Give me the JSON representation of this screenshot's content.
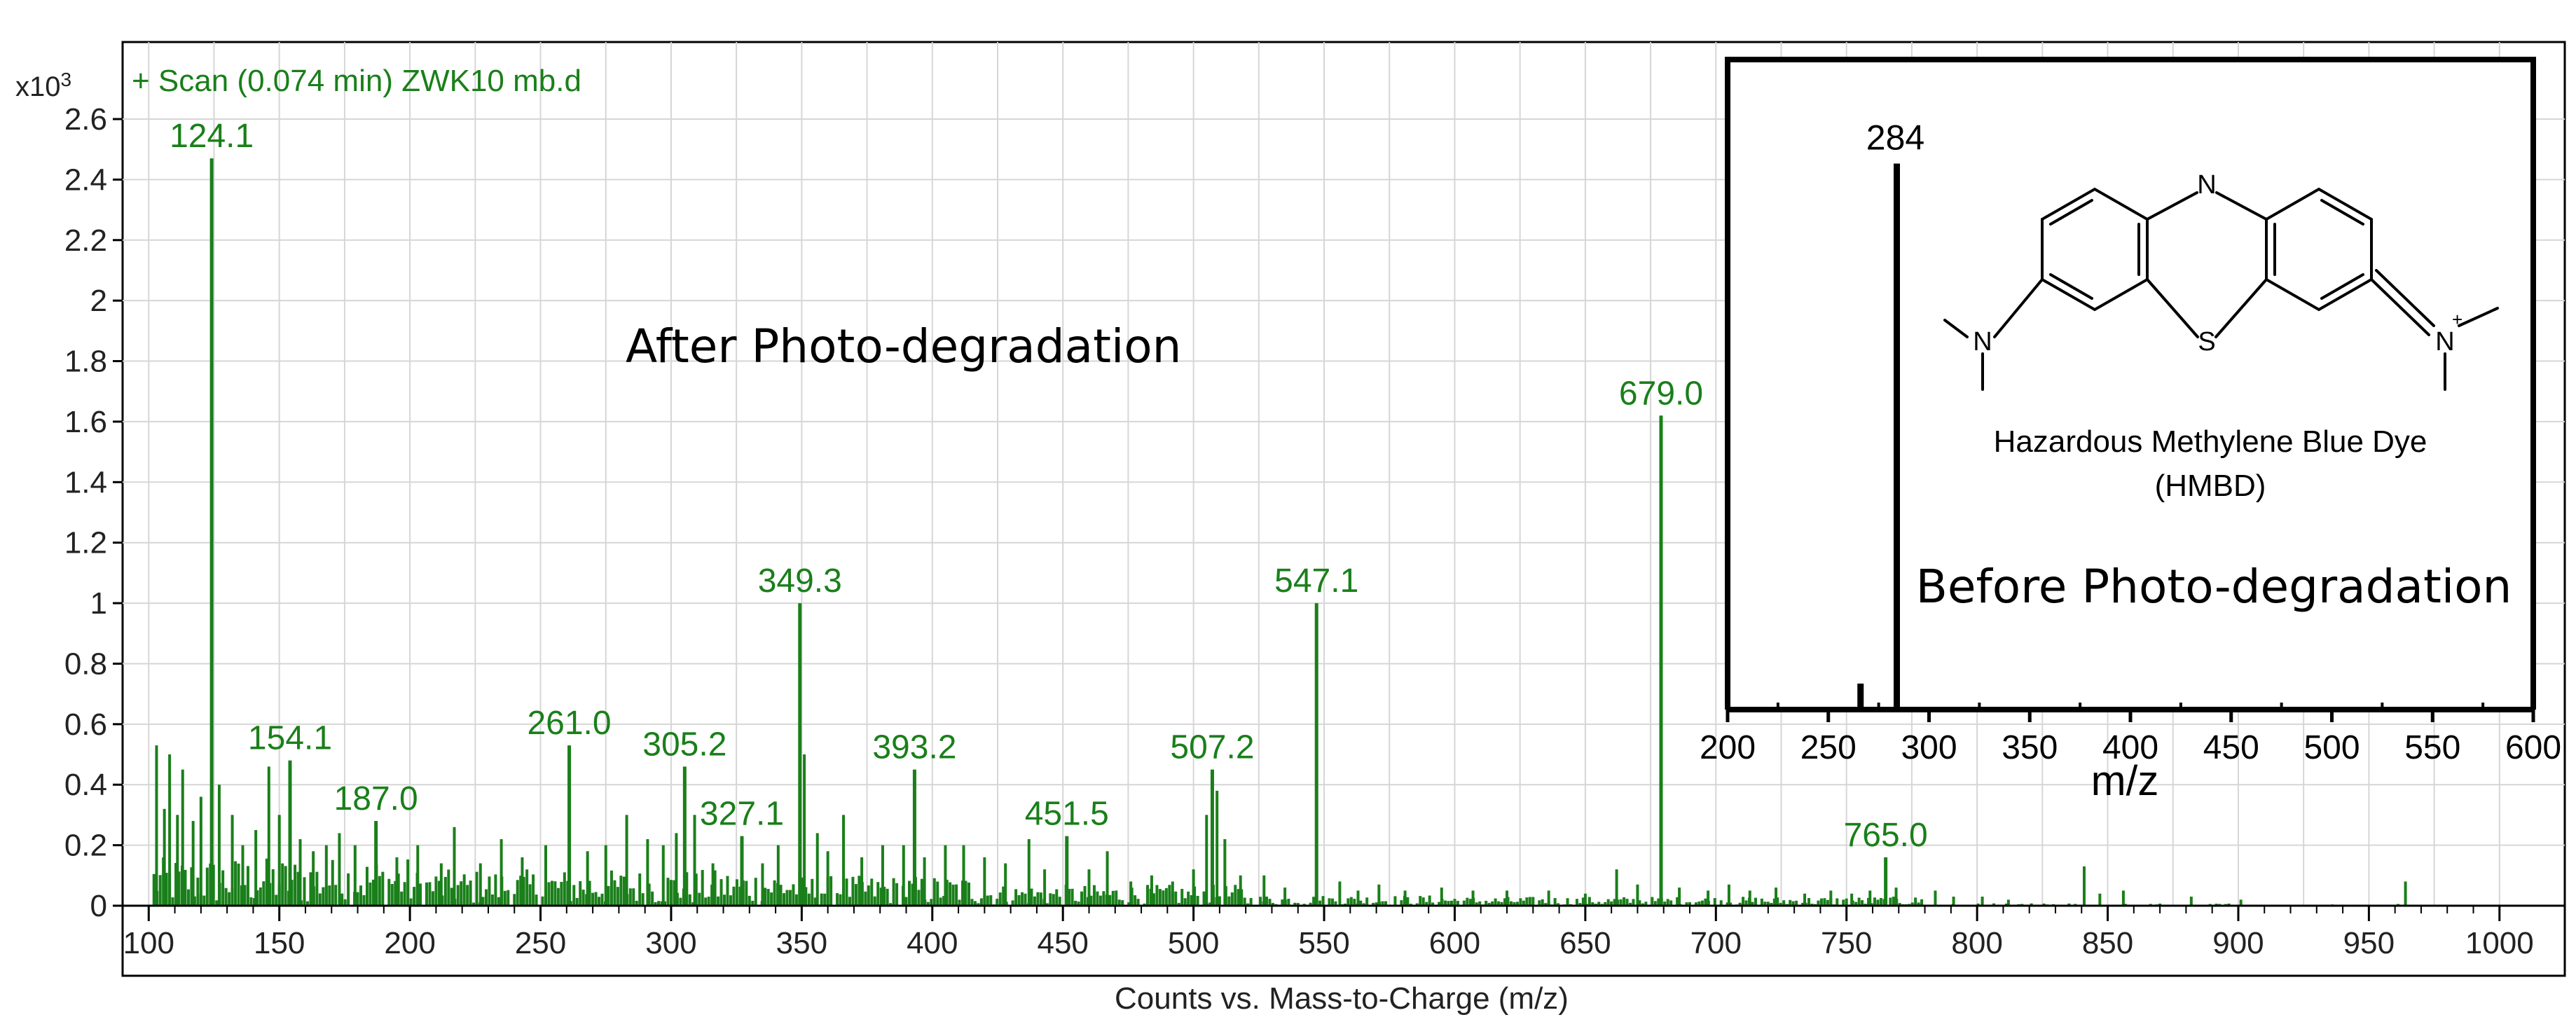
{
  "chart_data": [
    {
      "type": "bar",
      "title": "+ Scan (0.074 min) ZWK10 mb.d",
      "y_multiplier": "x10",
      "y_exponent": "3",
      "xlabel": "Counts vs. Mass-to-Charge (m/z)",
      "ylabel": "",
      "annotation": "After Photo-degradation",
      "xlim": [
        90,
        1025
      ],
      "ylim": [
        0,
        2.6
      ],
      "x_ticks": [
        100,
        150,
        200,
        250,
        300,
        350,
        400,
        450,
        500,
        550,
        600,
        650,
        700,
        750,
        800,
        850,
        900,
        950,
        1000
      ],
      "y_ticks": [
        "0",
        "0.2",
        "0.4",
        "0.6",
        "0.8",
        "1",
        "1.2",
        "1.4",
        "1.6",
        "1.8",
        "2",
        "2.2",
        "2.4",
        "2.6"
      ],
      "grid": true,
      "color": "#1a7f1a",
      "labeled_peaks": [
        {
          "x": 124.1,
          "y": 2.47,
          "label": "124.1"
        },
        {
          "x": 154.1,
          "y": 0.48,
          "label": "154.1"
        },
        {
          "x": 187.0,
          "y": 0.28,
          "label": "187.0"
        },
        {
          "x": 261.0,
          "y": 0.53,
          "label": "261.0"
        },
        {
          "x": 305.2,
          "y": 0.46,
          "label": "305.2"
        },
        {
          "x": 327.1,
          "y": 0.23,
          "label": "327.1"
        },
        {
          "x": 349.3,
          "y": 1.0,
          "label": "349.3"
        },
        {
          "x": 393.2,
          "y": 0.45,
          "label": "393.2"
        },
        {
          "x": 451.5,
          "y": 0.23,
          "label": "451.5"
        },
        {
          "x": 507.2,
          "y": 0.45,
          "label": "507.2"
        },
        {
          "x": 547.1,
          "y": 1.0,
          "label": "547.1"
        },
        {
          "x": 679.0,
          "y": 1.62,
          "label": "679.0"
        },
        {
          "x": 765.0,
          "y": 0.16,
          "label": "765.0"
        }
      ],
      "minor_peaks": [
        {
          "x": 103,
          "y": 0.53
        },
        {
          "x": 106,
          "y": 0.32
        },
        {
          "x": 108,
          "y": 0.5
        },
        {
          "x": 111,
          "y": 0.3
        },
        {
          "x": 113,
          "y": 0.45
        },
        {
          "x": 117,
          "y": 0.28
        },
        {
          "x": 120,
          "y": 0.36
        },
        {
          "x": 127,
          "y": 0.4
        },
        {
          "x": 132,
          "y": 0.3
        },
        {
          "x": 136,
          "y": 0.2
        },
        {
          "x": 141,
          "y": 0.25
        },
        {
          "x": 146,
          "y": 0.46
        },
        {
          "x": 150,
          "y": 0.3
        },
        {
          "x": 158,
          "y": 0.22
        },
        {
          "x": 163,
          "y": 0.18
        },
        {
          "x": 168,
          "y": 0.2
        },
        {
          "x": 173,
          "y": 0.24
        },
        {
          "x": 179,
          "y": 0.2
        },
        {
          "x": 195,
          "y": 0.16
        },
        {
          "x": 203,
          "y": 0.2
        },
        {
          "x": 212,
          "y": 0.14
        },
        {
          "x": 217,
          "y": 0.26
        },
        {
          "x": 227,
          "y": 0.14
        },
        {
          "x": 235,
          "y": 0.22
        },
        {
          "x": 243,
          "y": 0.16
        },
        {
          "x": 252,
          "y": 0.2
        },
        {
          "x": 268,
          "y": 0.18
        },
        {
          "x": 275,
          "y": 0.2
        },
        {
          "x": 283,
          "y": 0.3
        },
        {
          "x": 291,
          "y": 0.22
        },
        {
          "x": 297,
          "y": 0.2
        },
        {
          "x": 302,
          "y": 0.24
        },
        {
          "x": 309,
          "y": 0.3
        },
        {
          "x": 316,
          "y": 0.14
        },
        {
          "x": 335,
          "y": 0.14
        },
        {
          "x": 341,
          "y": 0.2
        },
        {
          "x": 351,
          "y": 0.5
        },
        {
          "x": 356,
          "y": 0.24
        },
        {
          "x": 360,
          "y": 0.18
        },
        {
          "x": 366,
          "y": 0.3
        },
        {
          "x": 373,
          "y": 0.16
        },
        {
          "x": 381,
          "y": 0.2
        },
        {
          "x": 389,
          "y": 0.2
        },
        {
          "x": 397,
          "y": 0.16
        },
        {
          "x": 405,
          "y": 0.2
        },
        {
          "x": 412,
          "y": 0.2
        },
        {
          "x": 420,
          "y": 0.16
        },
        {
          "x": 428,
          "y": 0.14
        },
        {
          "x": 437,
          "y": 0.22
        },
        {
          "x": 443,
          "y": 0.12
        },
        {
          "x": 460,
          "y": 0.12
        },
        {
          "x": 467,
          "y": 0.18
        },
        {
          "x": 476,
          "y": 0.08
        },
        {
          "x": 484,
          "y": 0.1
        },
        {
          "x": 492,
          "y": 0.08
        },
        {
          "x": 500,
          "y": 0.12
        },
        {
          "x": 505,
          "y": 0.3
        },
        {
          "x": 509,
          "y": 0.38
        },
        {
          "x": 512,
          "y": 0.22
        },
        {
          "x": 518,
          "y": 0.1
        },
        {
          "x": 527,
          "y": 0.1
        },
        {
          "x": 535,
          "y": 0.06
        },
        {
          "x": 556,
          "y": 0.08
        },
        {
          "x": 563,
          "y": 0.05
        },
        {
          "x": 571,
          "y": 0.07
        },
        {
          "x": 581,
          "y": 0.05
        },
        {
          "x": 595,
          "y": 0.06
        },
        {
          "x": 607,
          "y": 0.05
        },
        {
          "x": 620,
          "y": 0.05
        },
        {
          "x": 636,
          "y": 0.05
        },
        {
          "x": 650,
          "y": 0.04
        },
        {
          "x": 662,
          "y": 0.12
        },
        {
          "x": 670,
          "y": 0.07
        },
        {
          "x": 686,
          "y": 0.06
        },
        {
          "x": 697,
          "y": 0.05
        },
        {
          "x": 705,
          "y": 0.07
        },
        {
          "x": 713,
          "y": 0.05
        },
        {
          "x": 723,
          "y": 0.06
        },
        {
          "x": 734,
          "y": 0.04
        },
        {
          "x": 744,
          "y": 0.05
        },
        {
          "x": 752,
          "y": 0.04
        },
        {
          "x": 759,
          "y": 0.05
        },
        {
          "x": 769,
          "y": 0.06
        },
        {
          "x": 784,
          "y": 0.05
        },
        {
          "x": 791,
          "y": 0.03
        },
        {
          "x": 802,
          "y": 0.03
        },
        {
          "x": 812,
          "y": 0.02
        },
        {
          "x": 841,
          "y": 0.13
        },
        {
          "x": 847,
          "y": 0.04
        },
        {
          "x": 856,
          "y": 0.05
        },
        {
          "x": 882,
          "y": 0.03
        },
        {
          "x": 901,
          "y": 0.02
        },
        {
          "x": 964,
          "y": 0.08
        }
      ]
    },
    {
      "type": "bar",
      "annotation": "Before Photo-degradation",
      "xlabel": "m/z",
      "xlim": [
        200,
        600
      ],
      "x_ticks": [
        200,
        250,
        300,
        350,
        400,
        450,
        500,
        550,
        600
      ],
      "ylim": [
        0,
        1
      ],
      "color": "#000000",
      "peaks": [
        {
          "x": 284,
          "y": 0.84,
          "label": "284"
        },
        {
          "x": 266,
          "y": 0.04
        }
      ],
      "molecule_caption_line1": "Hazardous Methylene Blue Dye",
      "molecule_caption_line2": "(HMBD)",
      "structure_atoms": [
        "N",
        "S",
        "N",
        "N"
      ]
    }
  ]
}
